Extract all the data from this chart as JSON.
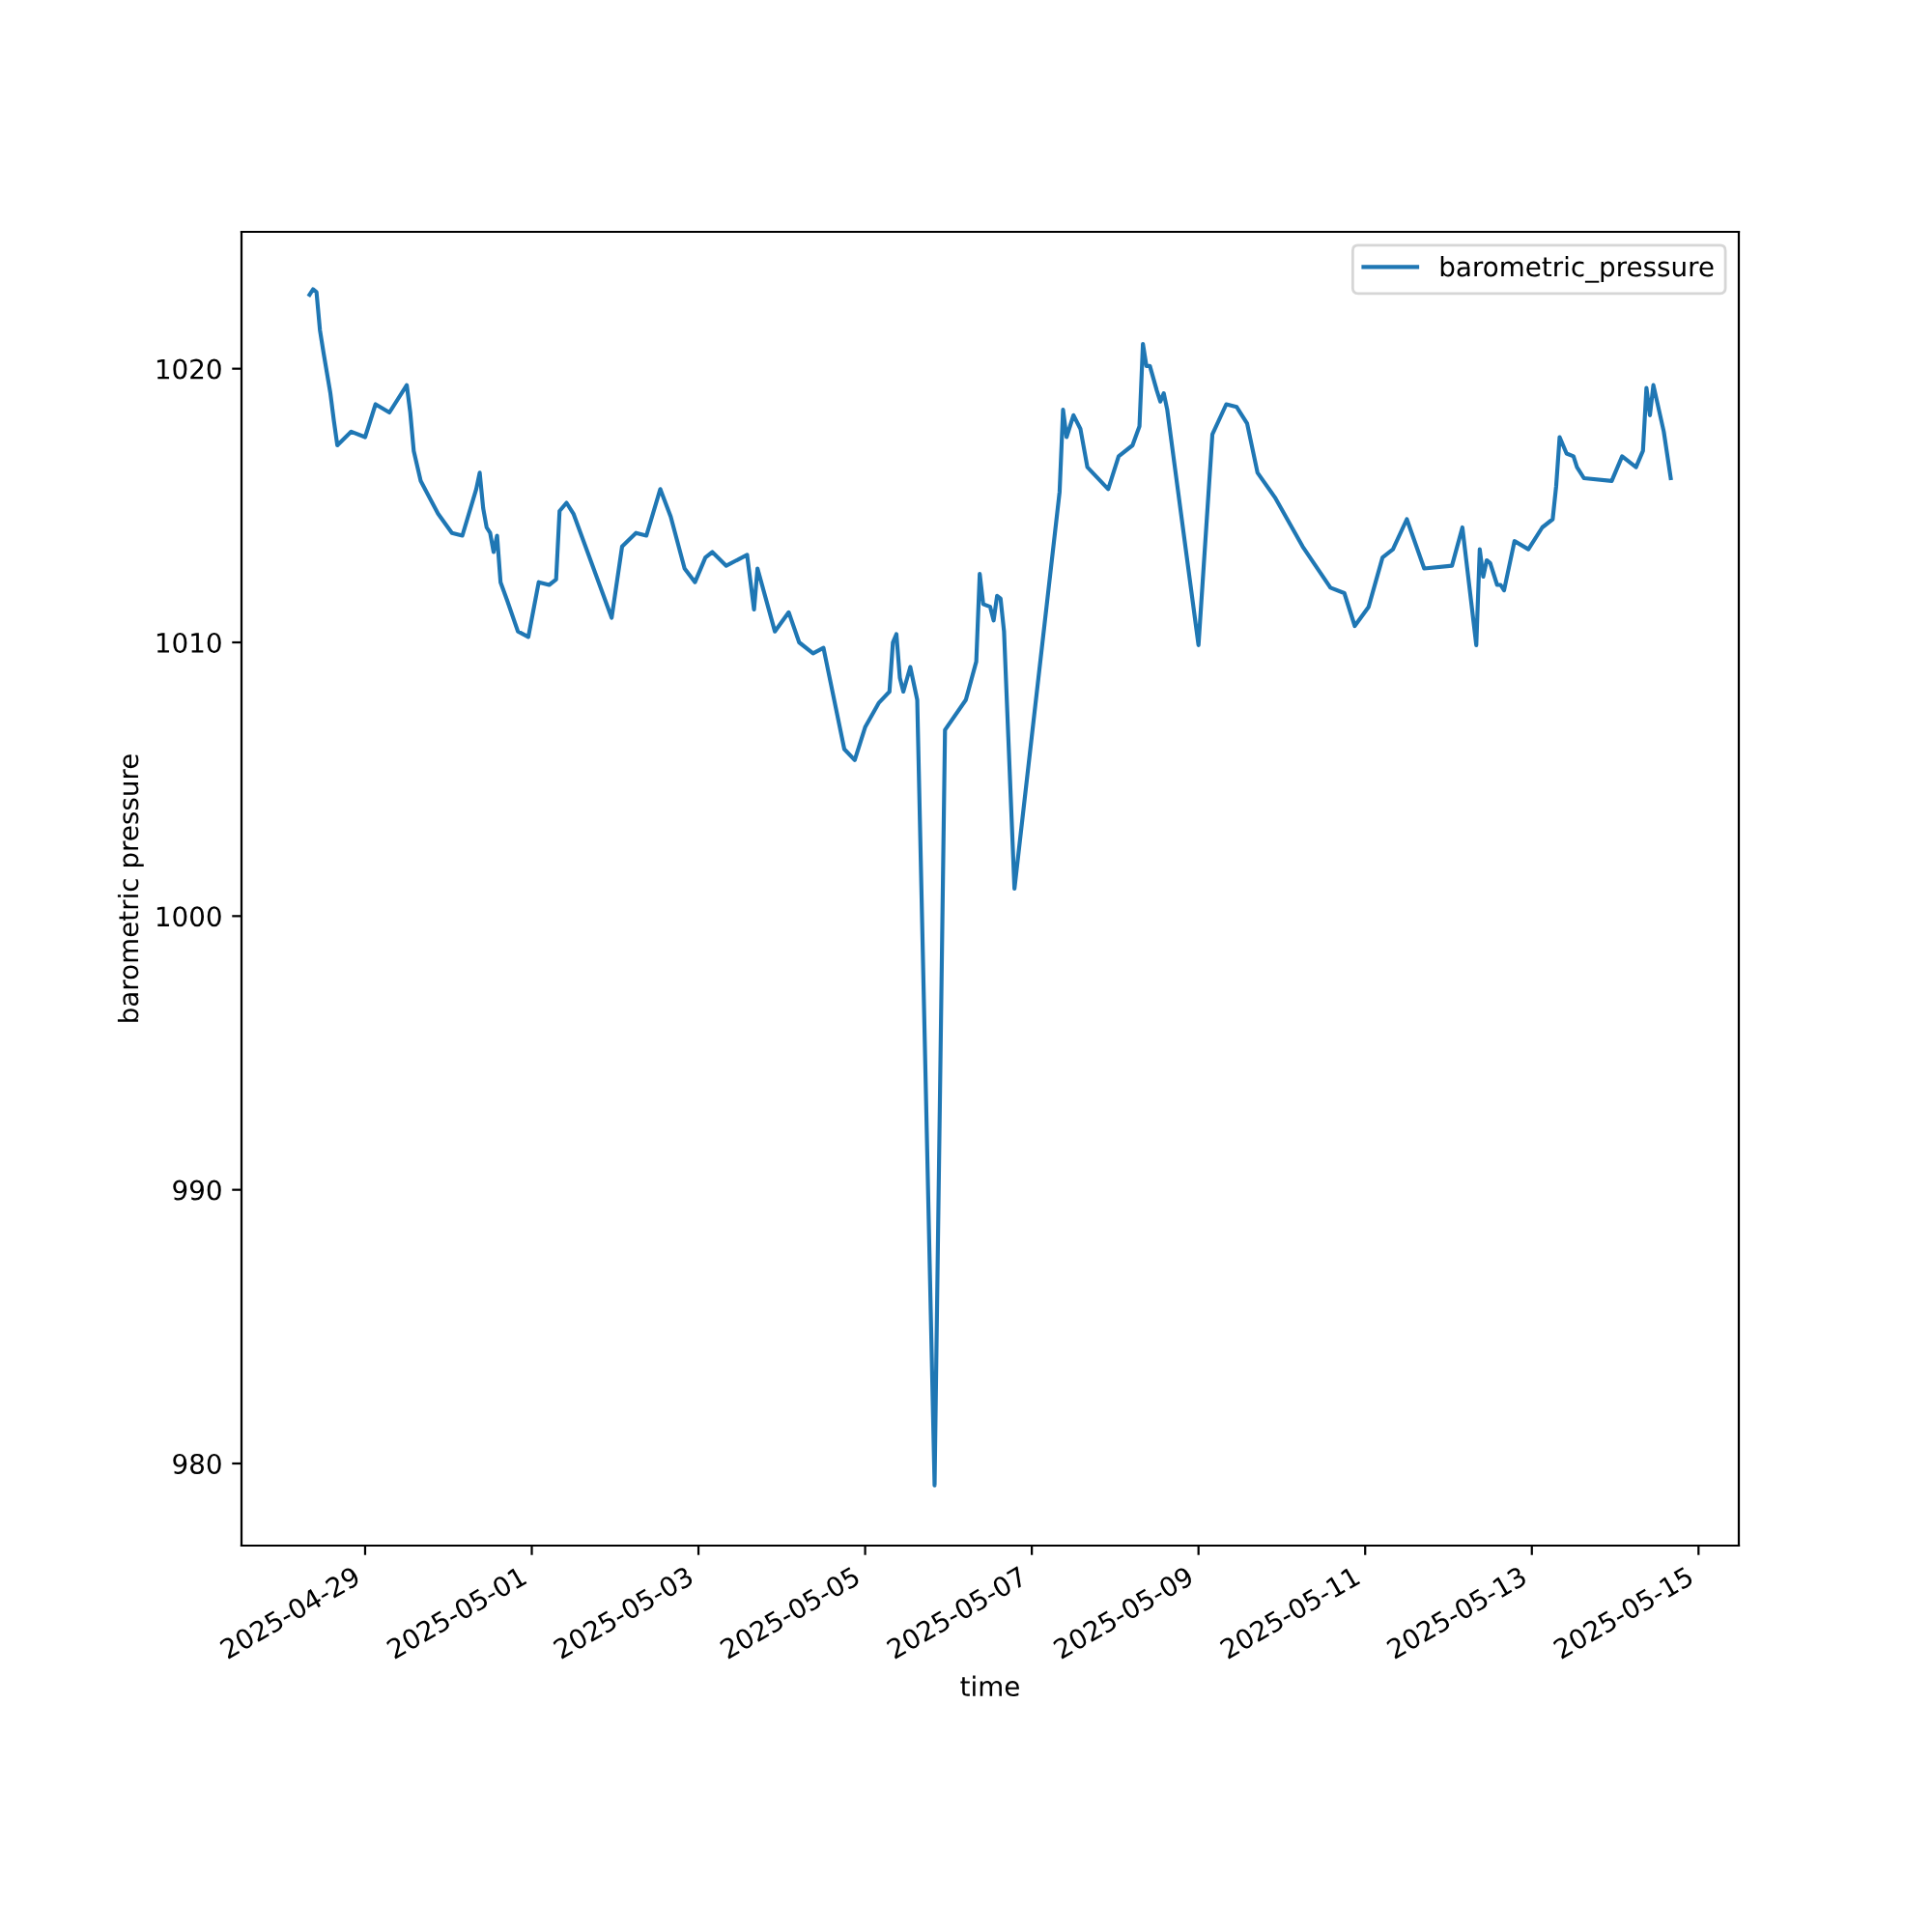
{
  "chart_data": {
    "type": "line",
    "xlabel": "time",
    "ylabel": "barometric pressure",
    "xlim": [
      "2025-04-27T12:24",
      "2025-05-15T11:36"
    ],
    "xticks": [
      "2025-04-29",
      "2025-05-01",
      "2025-05-03",
      "2025-05-05",
      "2025-05-07",
      "2025-05-09",
      "2025-05-11",
      "2025-05-13",
      "2025-05-15"
    ],
    "ylim": [
      977.0,
      1025.0
    ],
    "yticks": [
      980,
      990,
      1000,
      1010,
      1020
    ],
    "grid": false,
    "legend": "top right",
    "line_style": "solid",
    "marker": "none",
    "series": [
      {
        "name": "barometric_pressure",
        "color": "#1f77b4",
        "x": [
          "2025-04-28T08:00",
          "2025-04-28T09:00",
          "2025-04-28T10:00",
          "2025-04-28T11:00",
          "2025-04-28T12:00",
          "2025-04-28T14:00",
          "2025-04-28T15:00",
          "2025-04-28T16:00",
          "2025-04-28T20:00",
          "2025-04-29T00:00",
          "2025-04-29T03:00",
          "2025-04-29T07:00",
          "2025-04-29T12:00",
          "2025-04-29T13:00",
          "2025-04-29T14:00",
          "2025-04-29T16:00",
          "2025-04-29T21:00",
          "2025-04-30T01:00",
          "2025-04-30T04:00",
          "2025-04-30T08:00",
          "2025-04-30T09:00",
          "2025-04-30T10:00",
          "2025-04-30T11:00",
          "2025-04-30T12:00",
          "2025-04-30T13:00",
          "2025-04-30T14:00",
          "2025-04-30T15:00",
          "2025-04-30T17:00",
          "2025-04-30T20:00",
          "2025-04-30T23:00",
          "2025-05-01T02:00",
          "2025-05-01T05:00",
          "2025-05-01T07:00",
          "2025-05-01T08:00",
          "2025-05-01T10:00",
          "2025-05-01T12:00",
          "2025-05-01T23:00",
          "2025-05-02T02:00",
          "2025-05-02T06:00",
          "2025-05-02T09:00",
          "2025-05-02T13:00",
          "2025-05-02T16:00",
          "2025-05-02T20:00",
          "2025-05-02T23:00",
          "2025-05-03T02:00",
          "2025-05-03T04:00",
          "2025-05-03T08:00",
          "2025-05-03T14:00",
          "2025-05-03T16:00",
          "2025-05-03T17:00",
          "2025-05-03T22:00",
          "2025-05-04T02:00",
          "2025-05-04T05:00",
          "2025-05-04T09:00",
          "2025-05-04T12:00",
          "2025-05-04T18:00",
          "2025-05-04T21:00",
          "2025-05-05T00:00",
          "2025-05-05T04:00",
          "2025-05-05T07:00",
          "2025-05-05T08:00",
          "2025-05-05T09:00",
          "2025-05-05T10:00",
          "2025-05-05T11:00",
          "2025-05-05T13:00",
          "2025-05-05T15:00",
          "2025-05-05T20:00",
          "2025-05-05T23:00",
          "2025-05-06T05:00",
          "2025-05-06T08:00",
          "2025-05-06T09:00",
          "2025-05-06T10:00",
          "2025-05-06T12:00",
          "2025-05-06T13:00",
          "2025-05-06T14:00",
          "2025-05-06T15:00",
          "2025-05-06T16:00",
          "2025-05-06T19:00",
          "2025-05-07T08:00",
          "2025-05-07T09:00",
          "2025-05-07T10:00",
          "2025-05-07T12:00",
          "2025-05-07T14:00",
          "2025-05-07T16:00",
          "2025-05-07T22:00",
          "2025-05-08T01:00",
          "2025-05-08T05:00",
          "2025-05-08T07:00",
          "2025-05-08T08:00",
          "2025-05-08T09:00",
          "2025-05-08T10:00",
          "2025-05-08T12:00",
          "2025-05-08T13:00",
          "2025-05-08T14:00",
          "2025-05-08T15:00",
          "2025-05-09T00:00",
          "2025-05-09T04:00",
          "2025-05-09T08:00",
          "2025-05-09T11:00",
          "2025-05-09T14:00",
          "2025-05-09T17:00",
          "2025-05-09T22:00",
          "2025-05-10T06:00",
          "2025-05-10T14:00",
          "2025-05-10T18:00",
          "2025-05-10T21:00",
          "2025-05-11T01:00",
          "2025-05-11T05:00",
          "2025-05-11T08:00",
          "2025-05-11T12:00",
          "2025-05-11T17:00",
          "2025-05-12T01:00",
          "2025-05-12T04:00",
          "2025-05-12T08:00",
          "2025-05-12T09:00",
          "2025-05-12T10:00",
          "2025-05-12T11:00",
          "2025-05-12T12:00",
          "2025-05-12T14:00",
          "2025-05-12T15:00",
          "2025-05-12T16:00",
          "2025-05-12T19:00",
          "2025-05-12T23:00",
          "2025-05-13T03:00",
          "2025-05-13T06:00",
          "2025-05-13T07:00",
          "2025-05-13T08:00",
          "2025-05-13T10:00",
          "2025-05-13T12:00",
          "2025-05-13T13:00",
          "2025-05-13T15:00",
          "2025-05-13T23:00",
          "2025-05-14T02:00",
          "2025-05-14T06:00",
          "2025-05-14T08:00",
          "2025-05-14T09:00",
          "2025-05-14T10:00",
          "2025-05-14T11:00",
          "2025-05-14T14:00",
          "2025-05-14T16:00"
        ],
        "values": [
          1022.7,
          1022.9,
          1022.8,
          1021.4,
          1020.6,
          1019.1,
          1018.1,
          1017.2,
          1017.7,
          1017.5,
          1018.7,
          1018.4,
          1019.4,
          1018.4,
          1017.0,
          1015.9,
          1014.7,
          1014.0,
          1013.9,
          1015.6,
          1016.2,
          1014.9,
          1014.2,
          1014.0,
          1013.3,
          1013.9,
          1012.2,
          1011.5,
          1010.4,
          1010.2,
          1012.2,
          1012.1,
          1012.3,
          1014.8,
          1015.1,
          1014.7,
          1010.9,
          1013.5,
          1014.0,
          1013.9,
          1015.6,
          1014.6,
          1012.7,
          1012.2,
          1013.1,
          1013.3,
          1012.8,
          1013.2,
          1011.2,
          1012.7,
          1010.4,
          1011.1,
          1010.0,
          1009.6,
          1009.8,
          1006.1,
          1005.7,
          1006.9,
          1007.8,
          1008.2,
          1010.0,
          1010.3,
          1008.7,
          1008.2,
          1009.1,
          1007.9,
          979.2,
          1006.8,
          1007.9,
          1009.3,
          1012.5,
          1011.4,
          1011.3,
          1010.8,
          1011.7,
          1011.6,
          1010.4,
          1001.0,
          1015.5,
          1018.5,
          1017.5,
          1018.3,
          1017.8,
          1016.4,
          1015.6,
          1016.8,
          1017.2,
          1017.9,
          1020.9,
          1020.1,
          1020.1,
          1019.2,
          1018.8,
          1019.1,
          1018.5,
          1009.9,
          1017.6,
          1018.7,
          1018.6,
          1018.0,
          1016.2,
          1015.3,
          1013.5,
          1012.0,
          1011.8,
          1010.6,
          1011.3,
          1013.1,
          1013.4,
          1014.5,
          1012.7,
          1012.8,
          1014.2,
          1009.9,
          1013.4,
          1012.4,
          1013.0,
          1012.9,
          1012.1,
          1012.1,
          1011.9,
          1013.7,
          1013.4,
          1014.2,
          1014.5,
          1015.7,
          1017.5,
          1016.9,
          1016.8,
          1016.4,
          1016.0,
          1015.9,
          1016.8,
          1016.4,
          1017.0,
          1019.3,
          1018.3,
          1019.4,
          1017.7,
          1016.0
        ]
      }
    ]
  }
}
